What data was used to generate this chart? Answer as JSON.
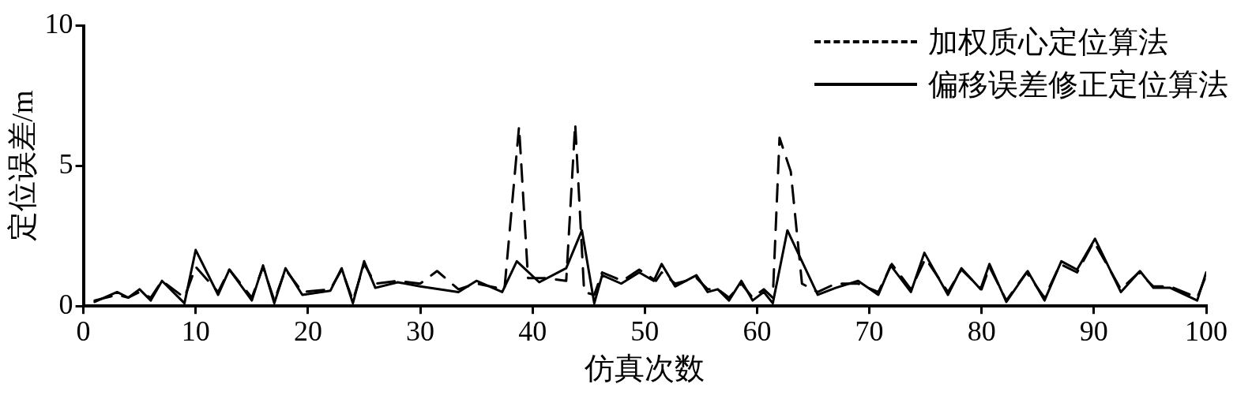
{
  "chart_data": {
    "type": "line",
    "xlabel": "仿真次数",
    "ylabel": "定位误差/m",
    "xlim": [
      0,
      100
    ],
    "xticks": [
      0,
      10,
      20,
      30,
      40,
      50,
      60,
      70,
      80,
      90,
      100
    ],
    "ylim": [
      0,
      10
    ],
    "yticks": [
      0,
      5,
      10
    ],
    "grid": false,
    "legend": "top right",
    "marker": "none",
    "series": [
      {
        "name": "加权质心定位算法",
        "color": "#000000",
        "line_style": "dashed",
        "x": [
          1,
          3,
          4,
          5,
          6,
          7,
          9,
          10,
          12,
          13,
          15,
          16,
          17,
          18,
          19.5,
          22,
          23,
          24,
          25,
          26,
          28,
          30,
          31.5,
          33.4,
          35,
          37.5,
          38.8,
          39.6,
          41,
          43,
          43.8,
          44.6,
          45.5,
          46.2,
          48,
          49.5,
          51,
          51.5,
          52.7,
          54.6,
          55.6,
          56.5,
          57.5,
          58.6,
          59.6,
          60.6,
          61.4,
          62,
          63,
          64,
          65.4,
          67,
          69,
          70.8,
          72,
          73.7,
          75,
          77,
          78.2,
          80,
          80.7,
          82.2,
          84,
          85.6,
          87,
          88.5,
          90,
          92.4,
          94,
          95.3,
          96.8,
          99.2,
          100
        ],
        "values": [
          0.2,
          0.4,
          0.3,
          0.5,
          0.3,
          0.9,
          0.3,
          1.4,
          0.5,
          1.3,
          0.3,
          1.4,
          0.2,
          1.3,
          0.5,
          0.6,
          1.3,
          0.2,
          1.5,
          0.8,
          0.9,
          0.8,
          1.25,
          0.6,
          0.8,
          0.6,
          6.4,
          1.0,
          1.0,
          0.9,
          6.5,
          0.5,
          0.4,
          1.2,
          0.9,
          1.3,
          0.9,
          1.2,
          0.8,
          1.0,
          0.6,
          0.6,
          0.3,
          0.8,
          0.3,
          0.6,
          0.3,
          6.0,
          4.8,
          0.8,
          0.5,
          0.8,
          0.8,
          0.5,
          1.5,
          0.6,
          1.7,
          0.5,
          1.3,
          0.6,
          1.4,
          0.2,
          1.2,
          0.3,
          1.5,
          1.2,
          2.3,
          0.6,
          1.2,
          0.7,
          0.7,
          0.3,
          1.1
        ]
      },
      {
        "name": "偏移误差修正定位算法",
        "color": "#000000",
        "line_style": "solid",
        "x": [
          1,
          3,
          4,
          5,
          6,
          7,
          9,
          10,
          12,
          13,
          15,
          16,
          17,
          18,
          19.5,
          22,
          23,
          24,
          25,
          26,
          28,
          30,
          33.4,
          35,
          37.3,
          38.6,
          40.6,
          43,
          44.4,
          45.5,
          46.2,
          47.9,
          49.5,
          50.8,
          51.5,
          52.7,
          54.6,
          55.6,
          56.5,
          57.5,
          58.6,
          59.6,
          60.6,
          61.4,
          62.7,
          65.4,
          67,
          69,
          70.8,
          71.9,
          73.7,
          74.9,
          77,
          78.2,
          79.9,
          80.7,
          82.2,
          84.1,
          85.6,
          87.1,
          88.5,
          90.1,
          92.4,
          94.1,
          95.3,
          96.8,
          99.2,
          100
        ],
        "values": [
          0.15,
          0.5,
          0.3,
          0.6,
          0.2,
          0.9,
          0.1,
          2.0,
          0.4,
          1.3,
          0.2,
          1.45,
          0.1,
          1.35,
          0.4,
          0.55,
          1.35,
          0.1,
          1.6,
          0.65,
          0.85,
          0.7,
          0.5,
          0.9,
          0.5,
          1.6,
          0.85,
          1.35,
          2.7,
          0.1,
          1.1,
          0.8,
          1.2,
          0.9,
          1.5,
          0.7,
          1.1,
          0.5,
          0.6,
          0.2,
          0.9,
          0.2,
          0.5,
          0.1,
          2.7,
          0.4,
          0.65,
          0.9,
          0.4,
          1.45,
          0.5,
          1.9,
          0.4,
          1.35,
          0.6,
          1.5,
          0.15,
          1.25,
          0.2,
          1.6,
          1.3,
          2.4,
          0.5,
          1.25,
          0.65,
          0.65,
          0.2,
          1.2
        ]
      }
    ]
  }
}
